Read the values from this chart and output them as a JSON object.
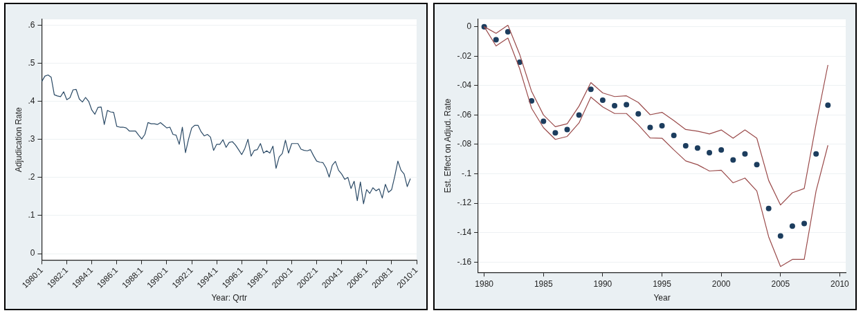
{
  "chart_data": [
    {
      "type": "line",
      "xlabel": "Year: Qrtr",
      "ylabel": "Adjudication Rate",
      "color": "#2b4a66",
      "grid": "y",
      "legend": false,
      "categories": [
        "1980:1",
        null,
        null,
        null,
        null,
        null,
        null,
        null,
        "1982:1",
        null,
        null,
        null,
        null,
        null,
        null,
        null,
        "1984:1",
        null,
        null,
        null,
        null,
        null,
        null,
        null,
        "1986:1",
        null,
        null,
        null,
        null,
        null,
        null,
        null,
        "1988:1",
        null,
        null,
        null,
        null,
        null,
        null,
        null,
        "1990:1",
        null,
        null,
        null,
        null,
        null,
        null,
        null,
        "1992:1",
        null,
        null,
        null,
        null,
        null,
        null,
        null,
        "1994:1",
        null,
        null,
        null,
        null,
        null,
        null,
        null,
        "1996:1",
        null,
        null,
        null,
        null,
        null,
        null,
        null,
        "1998:1",
        null,
        null,
        null,
        null,
        null,
        null,
        null,
        "2000:1",
        null,
        null,
        null,
        null,
        null,
        null,
        null,
        "2002:1",
        null,
        null,
        null,
        null,
        null,
        null,
        null,
        "2004:1",
        null,
        null,
        null,
        null,
        null,
        null,
        null,
        "2006:1",
        null,
        null,
        null,
        null,
        null,
        null,
        null,
        "2008:1",
        null,
        null,
        null,
        null,
        null,
        null,
        null,
        "2010:1"
      ],
      "values": [
        0.452,
        0.466,
        0.469,
        0.463,
        0.417,
        0.414,
        0.412,
        0.425,
        0.404,
        0.409,
        0.43,
        0.431,
        0.406,
        0.398,
        0.41,
        0.4,
        0.377,
        0.366,
        0.384,
        0.385,
        0.339,
        0.376,
        0.372,
        0.371,
        0.334,
        0.332,
        0.332,
        0.33,
        0.322,
        0.322,
        0.322,
        0.311,
        0.301,
        0.313,
        0.344,
        0.341,
        0.341,
        0.339,
        0.344,
        0.337,
        0.33,
        0.332,
        0.313,
        0.311,
        0.287,
        0.332,
        0.265,
        0.301,
        0.33,
        0.337,
        0.337,
        0.32,
        0.309,
        0.313,
        0.306,
        0.271,
        0.287,
        0.287,
        0.299,
        0.279,
        0.292,
        0.294,
        0.285,
        0.273,
        0.26,
        0.276,
        0.3,
        0.256,
        0.271,
        0.273,
        0.289,
        0.264,
        0.27,
        0.264,
        0.282,
        0.224,
        0.254,
        0.263,
        0.298,
        0.264,
        0.289,
        0.289,
        0.289,
        0.274,
        0.271,
        0.27,
        0.273,
        0.257,
        0.243,
        0.24,
        0.239,
        0.225,
        0.201,
        0.232,
        0.242,
        0.219,
        0.209,
        0.195,
        0.2,
        0.171,
        0.19,
        0.139,
        0.188,
        0.131,
        0.168,
        0.158,
        0.173,
        0.165,
        0.17,
        0.146,
        0.182,
        0.161,
        0.168,
        0.203,
        0.243,
        0.219,
        0.209,
        0.176,
        0.197,
        null,
        null
      ],
      "ylim": [
        -0.017,
        0.615
      ],
      "yticks": [
        0,
        {
          "value": 0.1,
          "label": ".1"
        },
        {
          "value": 0.2,
          "label": ".2"
        },
        {
          "value": 0.3,
          "label": ".3"
        },
        {
          "value": 0.4,
          "label": ".4"
        },
        {
          "value": 0.5,
          "label": ".5"
        },
        {
          "value": 0.6,
          "label": ".6"
        }
      ]
    },
    {
      "type": "scatter",
      "xlabel": "Year",
      "ylabel": "Est. Effect on Adjud. Rate",
      "grid": "y",
      "legend": false,
      "x": [
        1980,
        1981,
        1982,
        1983,
        1984,
        1985,
        1986,
        1987,
        1988,
        1989,
        1990,
        1991,
        1992,
        1993,
        1994,
        1995,
        1996,
        1997,
        1998,
        1999,
        2000,
        2001,
        2002,
        2003,
        2004,
        2005,
        2006,
        2007,
        2008,
        2009
      ],
      "series": [
        {
          "type": "line",
          "marker": "none",
          "color": "#9a4a4a",
          "values": [
            0,
            -0.0045,
            0.001,
            -0.019,
            -0.044,
            -0.06,
            -0.068,
            -0.066,
            -0.054,
            -0.038,
            -0.045,
            -0.0475,
            -0.047,
            -0.0515,
            -0.0598,
            -0.0582,
            -0.0638,
            -0.0699,
            -0.071,
            -0.0729,
            -0.0702,
            -0.0758,
            -0.0702,
            -0.0758,
            -0.1045,
            -0.1212,
            -0.1129,
            -0.11,
            -0.0662,
            -0.026
          ]
        },
        {
          "type": "line",
          "marker": "none",
          "color": "#9a4a4a",
          "values": [
            0,
            -0.0131,
            -0.0077,
            -0.0287,
            -0.0555,
            -0.0686,
            -0.0766,
            -0.0746,
            -0.0654,
            -0.0478,
            -0.0545,
            -0.059,
            -0.059,
            -0.0667,
            -0.0756,
            -0.0758,
            -0.0837,
            -0.0912,
            -0.0938,
            -0.0981,
            -0.0976,
            -0.1061,
            -0.1029,
            -0.1117,
            -0.1428,
            -0.163,
            -0.1582,
            -0.1582,
            -0.1117,
            -0.0806
          ]
        },
        {
          "marker": "circle",
          "color": "#1c3d5e",
          "values": [
            0,
            -0.0089,
            -0.0035,
            -0.0241,
            -0.0504,
            -0.0643,
            -0.0722,
            -0.0699,
            -0.06,
            -0.0426,
            -0.05,
            -0.0537,
            -0.053,
            -0.0592,
            -0.0685,
            -0.0673,
            -0.0739,
            -0.0809,
            -0.0825,
            -0.0857,
            -0.0838,
            -0.0906,
            -0.0865,
            -0.0938,
            -0.1236,
            -0.1423,
            -0.1356,
            -0.1338,
            -0.0865,
            -0.0534
          ]
        }
      ],
      "xlim": [
        1979.5,
        2010.5
      ],
      "xticks": [
        1980,
        1985,
        1990,
        1995,
        2000,
        2005,
        2010
      ],
      "ylim": [
        -0.167,
        0.005
      ],
      "yticks": [
        {
          "value": -0.16,
          "label": "-.16"
        },
        {
          "value": -0.14,
          "label": "-.14"
        },
        {
          "value": -0.12,
          "label": "-.12"
        },
        {
          "value": -0.1,
          "label": "-.1"
        },
        {
          "value": -0.08,
          "label": "-.08"
        },
        {
          "value": -0.06,
          "label": "-.06"
        },
        {
          "value": -0.04,
          "label": "-.04"
        },
        {
          "value": -0.02,
          "label": "-.02"
        },
        0
      ]
    }
  ]
}
